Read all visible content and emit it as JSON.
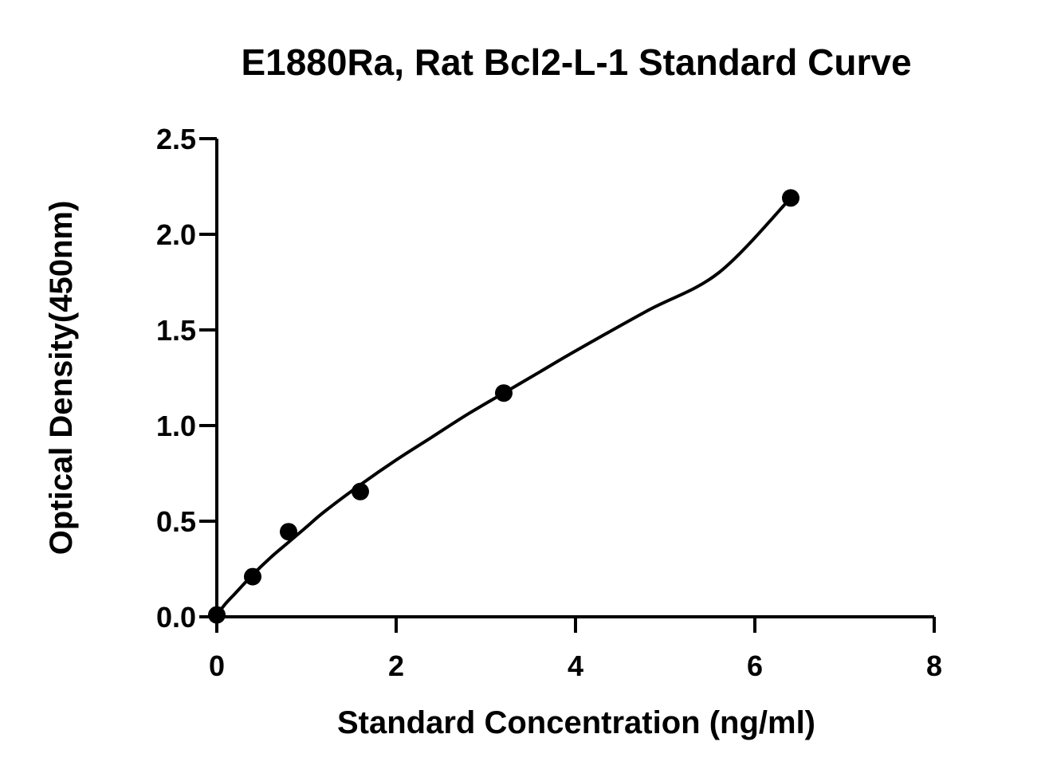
{
  "chart_data": {
    "type": "scatter",
    "title": "E1880Ra, Rat Bcl2-L-1 Standard Curve",
    "xlabel": "Standard Concentration (ng/ml)",
    "ylabel": "Optical Density(450nm)",
    "xlim": [
      0,
      8
    ],
    "ylim": [
      0,
      2.5
    ],
    "x_ticks": [
      "0",
      "2",
      "4",
      "6",
      "8"
    ],
    "y_ticks": [
      "0.0",
      "0.5",
      "1.0",
      "1.5",
      "2.0",
      "2.5"
    ],
    "x_tick_values": [
      0,
      2,
      4,
      6,
      8
    ],
    "y_tick_values": [
      0,
      0.5,
      1.0,
      1.5,
      2.0,
      2.5
    ],
    "grid": false,
    "series": [
      {
        "x": [
          0,
          0.4,
          0.8,
          1.6,
          3.2,
          6.4
        ],
        "y": [
          0.01,
          0.21,
          0.445,
          0.655,
          1.17,
          2.19
        ]
      }
    ],
    "fit_curve": {
      "x": [
        0,
        0.1,
        0.2,
        0.4,
        0.6,
        0.8,
        1.0,
        1.2,
        1.6,
        2.0,
        2.4,
        2.8,
        3.2,
        3.6,
        4.0,
        4.8,
        5.6,
        6.4
      ],
      "y": [
        0.01,
        0.07,
        0.12,
        0.22,
        0.31,
        0.39,
        0.47,
        0.55,
        0.69,
        0.82,
        0.94,
        1.06,
        1.17,
        1.28,
        1.39,
        1.6,
        1.8,
        2.19
      ]
    }
  }
}
